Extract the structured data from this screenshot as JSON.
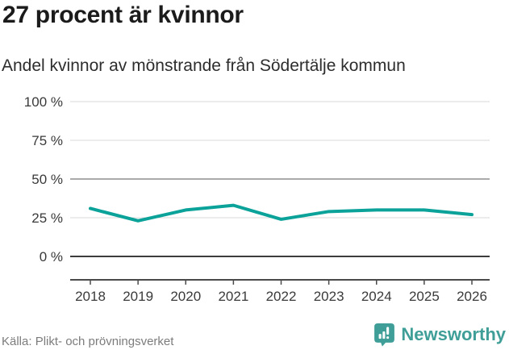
{
  "header": {
    "title": "27 procent är kvinnor",
    "subtitle": "Andel kvinnor av mönstrande från Södertälje kommun"
  },
  "chart_data": {
    "type": "line",
    "title": "27 procent är kvinnor",
    "subtitle": "Andel kvinnor av mönstrande från Södertälje kommun",
    "x": [
      2018,
      2019,
      2020,
      2021,
      2022,
      2023,
      2024,
      2025,
      2026
    ],
    "values": [
      31,
      23,
      30,
      33,
      24,
      29,
      30,
      30,
      27
    ],
    "unit": "%",
    "ylim": [
      0,
      100
    ],
    "yticks": [
      0,
      25,
      50,
      75,
      100
    ],
    "ytick_labels": [
      "0 %",
      "25 %",
      "50 %",
      "75 %",
      "100 %"
    ],
    "grid": true,
    "legend": false,
    "line_color": "#0ba29a"
  },
  "footer": {
    "source": "Källa: Plikt- och prövningsverket",
    "brand": "Newsworthy",
    "brand_color": "#3f9f98"
  }
}
